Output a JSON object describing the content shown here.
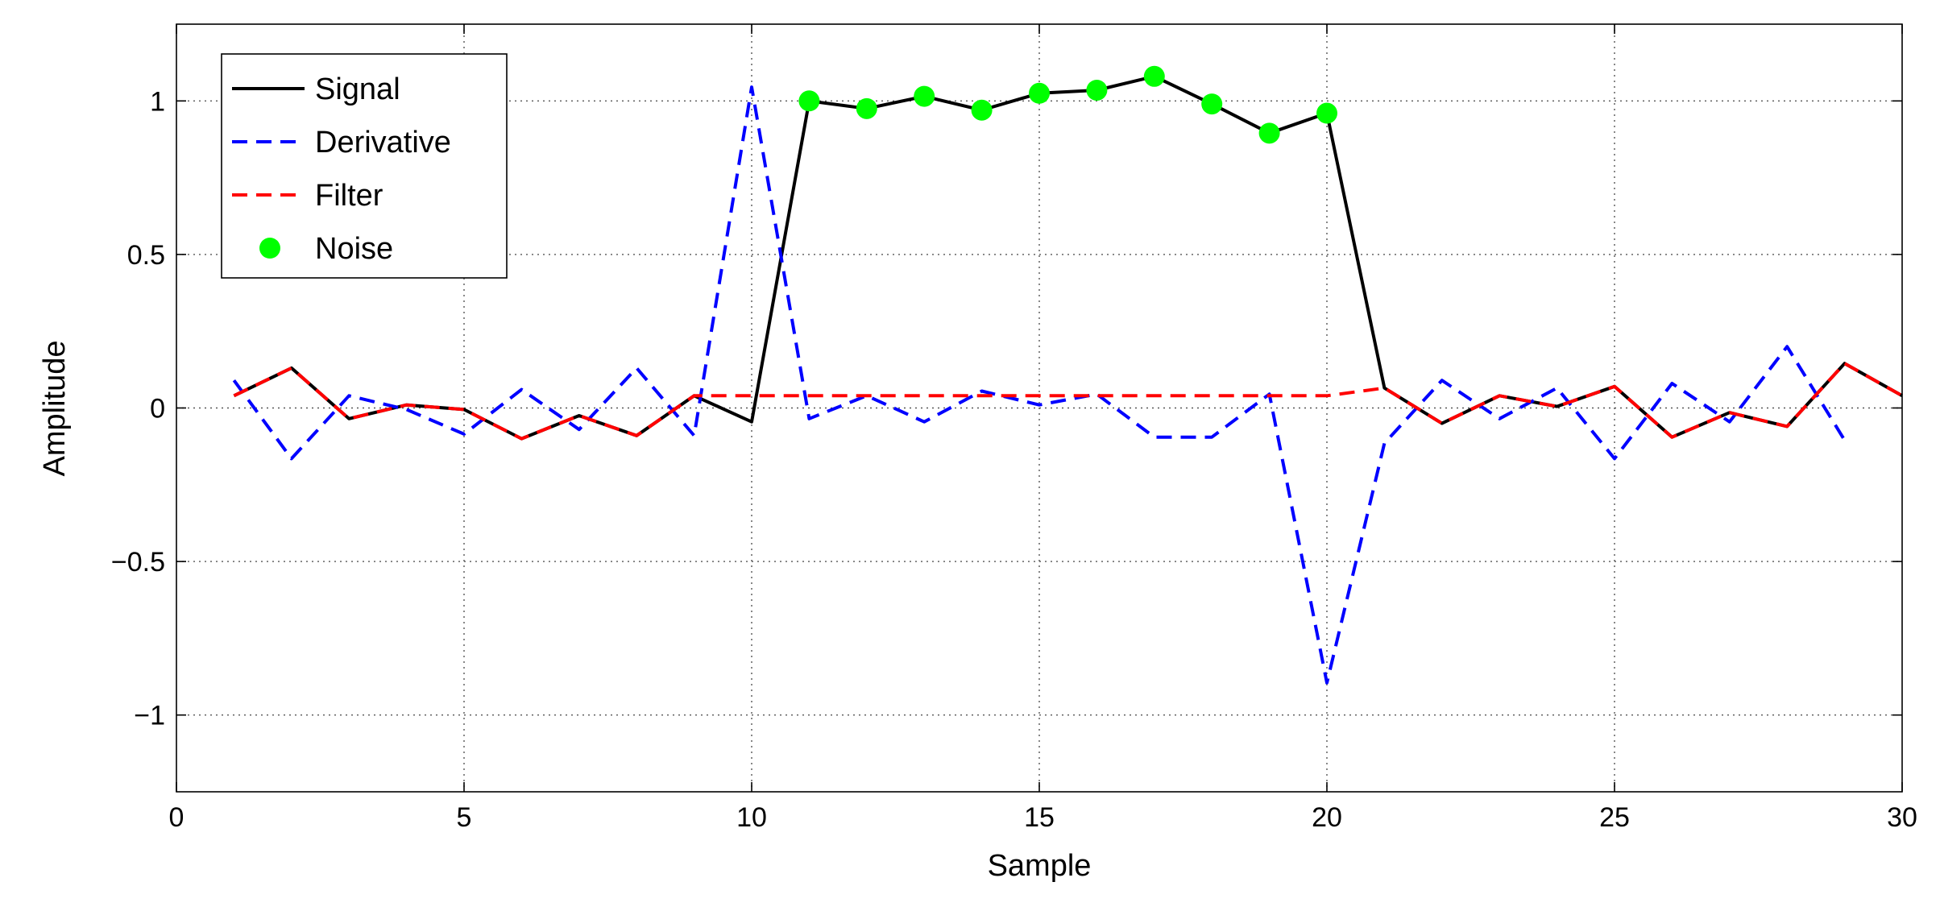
{
  "chart_data": {
    "type": "line",
    "title": "",
    "xlabel": "Sample",
    "ylabel": "Amplitude",
    "xlim": [
      0,
      30
    ],
    "ylim": [
      -1.25,
      1.25
    ],
    "xticks": [
      0,
      5,
      10,
      15,
      20,
      25,
      30
    ],
    "yticks": [
      -1,
      -0.5,
      0,
      0.5,
      1
    ],
    "xtick_labels": [
      "0",
      "5",
      "10",
      "15",
      "20",
      "25",
      "30"
    ],
    "ytick_labels": [
      "−1",
      "−0.5",
      "0",
      "0.5",
      "1"
    ],
    "grid": true,
    "legend_position": "top-left",
    "series": [
      {
        "name": "Signal",
        "style": "solid",
        "color": "#000000",
        "x": [
          1,
          2,
          3,
          4,
          5,
          6,
          7,
          8,
          9,
          10,
          11,
          12,
          13,
          14,
          15,
          16,
          17,
          18,
          19,
          20,
          21,
          22,
          23,
          24,
          25,
          26,
          27,
          28,
          29,
          30
        ],
        "y": [
          0.04,
          0.13,
          -0.035,
          0.01,
          -0.005,
          -0.1,
          -0.025,
          -0.09,
          0.04,
          -0.045,
          1.0,
          0.975,
          1.015,
          0.97,
          1.025,
          1.035,
          1.08,
          0.99,
          0.895,
          0.96,
          0.065,
          -0.05,
          0.04,
          0.005,
          0.07,
          -0.095,
          -0.015,
          -0.06,
          0.145,
          0.04
        ]
      },
      {
        "name": "Derivative",
        "style": "dashed",
        "color": "#0000ff",
        "x": [
          1,
          2,
          3,
          4,
          5,
          6,
          7,
          8,
          9,
          10,
          11,
          12,
          13,
          14,
          15,
          16,
          17,
          18,
          19,
          20,
          21,
          22,
          23,
          24,
          25,
          26,
          27,
          28,
          29
        ],
        "y": [
          0.09,
          -0.165,
          0.04,
          -0.005,
          -0.085,
          0.06,
          -0.07,
          0.13,
          -0.09,
          1.045,
          -0.035,
          0.04,
          -0.045,
          0.055,
          0.01,
          0.045,
          -0.095,
          -0.095,
          0.045,
          -0.895,
          -0.115,
          0.09,
          -0.035,
          0.065,
          -0.165,
          0.08,
          -0.045,
          0.2,
          -0.105
        ]
      },
      {
        "name": "Filter",
        "style": "dashed",
        "color": "#ff0000",
        "x": [
          1,
          2,
          3,
          4,
          5,
          6,
          7,
          8,
          9,
          10,
          11,
          12,
          13,
          14,
          15,
          16,
          17,
          18,
          19,
          20,
          21,
          22,
          23,
          24,
          25,
          26,
          27,
          28,
          29,
          30
        ],
        "y": [
          0.04,
          0.13,
          -0.035,
          0.01,
          -0.005,
          -0.1,
          -0.025,
          -0.09,
          0.04,
          0.04,
          0.04,
          0.04,
          0.04,
          0.04,
          0.04,
          0.04,
          0.04,
          0.04,
          0.04,
          0.04,
          0.065,
          -0.05,
          0.04,
          0.005,
          0.07,
          -0.095,
          -0.015,
          -0.06,
          0.145,
          0.04
        ]
      },
      {
        "name": "Noise",
        "style": "markers",
        "color": "#00ff00",
        "x": [
          11,
          12,
          13,
          14,
          15,
          16,
          17,
          18,
          19,
          20
        ],
        "y": [
          1.0,
          0.975,
          1.015,
          0.97,
          1.025,
          1.035,
          1.08,
          0.99,
          0.895,
          0.96
        ]
      }
    ]
  }
}
